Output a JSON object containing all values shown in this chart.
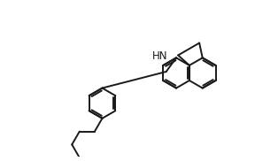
{
  "background_color": "#ffffff",
  "line_color": "#1a1a1a",
  "line_width": 1.4,
  "font_size": 8.5,
  "hn_label": "HN",
  "figsize": [
    2.88,
    1.82
  ],
  "dpi": 100
}
